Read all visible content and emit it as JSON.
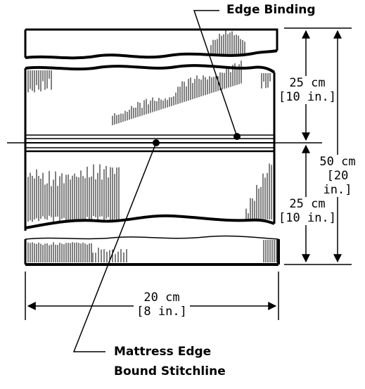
{
  "labels": {
    "edge_binding": "Edge Binding",
    "mattress_edge_line1": "Mattress Edge",
    "mattress_edge_line2": "Bound Stitchline"
  },
  "dimensions": {
    "upper": {
      "metric": "25 cm",
      "imperial": "[10 in.]"
    },
    "lower": {
      "metric": "25 cm",
      "imperial": "[10 in.]"
    },
    "total": {
      "metric": "50 cm",
      "imperial": "[20 in.]"
    },
    "width": {
      "metric": "20 cm",
      "imperial": "[8 in.]"
    }
  },
  "colors": {
    "ink": "#000000",
    "paper": "#ffffff"
  }
}
